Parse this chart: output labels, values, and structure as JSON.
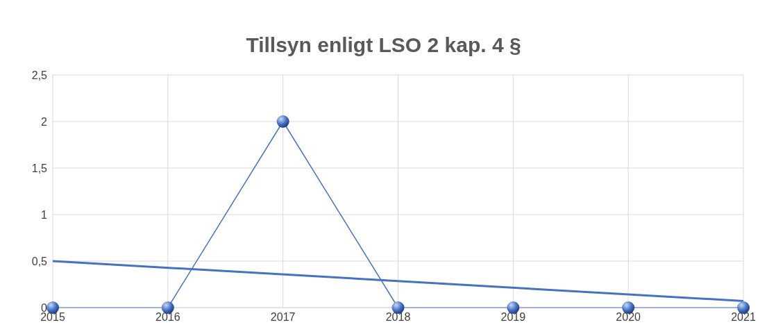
{
  "chart_data": {
    "type": "line",
    "title": "Tillsyn enligt LSO 2 kap. 4 §",
    "x": [
      2015,
      2016,
      2017,
      2018,
      2019,
      2020,
      2021
    ],
    "series": [
      {
        "color": "#4472c4",
        "values": [
          0,
          0,
          2,
          0,
          0,
          0,
          0
        ],
        "marker": "circle"
      },
      {
        "type": "line",
        "x": [
          2015,
          2021
        ],
        "color": "#4472c4",
        "values": [
          0.5,
          0.071
        ],
        "marker": "none"
      }
    ],
    "xlim": [
      2015,
      2021
    ],
    "xticks": [
      2015,
      2016,
      2017,
      2018,
      2019,
      2020,
      2021
    ],
    "ylim": [
      0,
      2.5
    ],
    "yticks": [
      0,
      {
        "value": 0.5,
        "label": "0,5"
      },
      1,
      {
        "value": 1.5,
        "label": "1,5"
      },
      2,
      {
        "value": 2.5,
        "label": "2,5"
      }
    ],
    "grid": true
  }
}
